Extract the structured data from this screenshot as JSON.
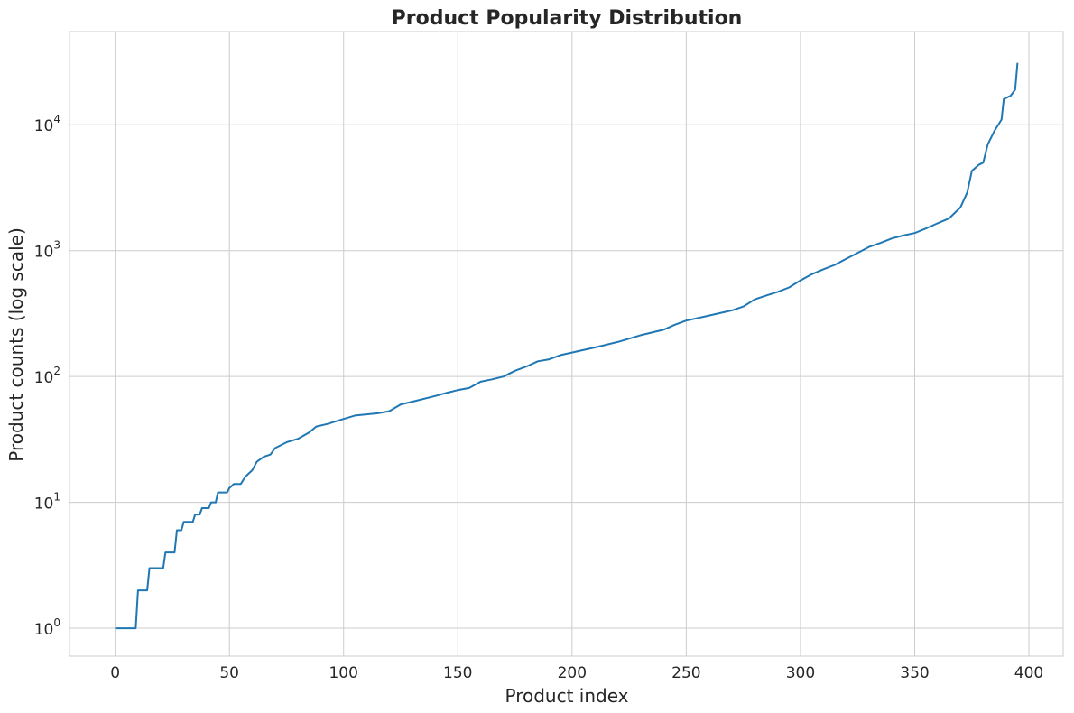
{
  "chart_data": {
    "type": "line",
    "title": "Product Popularity Distribution",
    "xlabel": "Product index",
    "ylabel": "Product counts (log scale)",
    "xlim": [
      -20,
      415
    ],
    "ylim": [
      0.6,
      55000
    ],
    "yscale": "log",
    "grid": true,
    "x_ticks": [
      0,
      50,
      100,
      150,
      200,
      250,
      300,
      350,
      400
    ],
    "x_tick_labels": [
      "0",
      "50",
      "100",
      "150",
      "200",
      "250",
      "300",
      "350",
      "400"
    ],
    "y_ticks": [
      1,
      10,
      100,
      1000,
      10000
    ],
    "y_tick_labels": [
      {
        "base": "10",
        "exp": "0"
      },
      {
        "base": "10",
        "exp": "1"
      },
      {
        "base": "10",
        "exp": "2"
      },
      {
        "base": "10",
        "exp": "3"
      },
      {
        "base": "10",
        "exp": "4"
      }
    ],
    "color": "#1f77b4",
    "series": [
      {
        "points": [
          [
            0,
            1
          ],
          [
            9,
            1
          ],
          [
            10,
            2
          ],
          [
            14,
            2
          ],
          [
            15,
            3
          ],
          [
            21,
            3
          ],
          [
            22,
            4
          ],
          [
            26,
            4
          ],
          [
            27,
            6
          ],
          [
            29,
            6
          ],
          [
            30,
            7
          ],
          [
            34,
            7
          ],
          [
            35,
            8
          ],
          [
            37,
            8
          ],
          [
            38,
            9
          ],
          [
            41,
            9
          ],
          [
            42,
            10
          ],
          [
            44,
            10
          ],
          [
            45,
            12
          ],
          [
            49,
            12
          ],
          [
            50,
            13
          ],
          [
            52,
            14
          ],
          [
            55,
            14
          ],
          [
            57,
            16
          ],
          [
            60,
            18
          ],
          [
            62,
            21
          ],
          [
            65,
            23
          ],
          [
            68,
            24
          ],
          [
            70,
            27
          ],
          [
            75,
            30
          ],
          [
            80,
            32
          ],
          [
            85,
            36
          ],
          [
            88,
            40
          ],
          [
            93,
            42
          ],
          [
            100,
            46
          ],
          [
            105,
            49
          ],
          [
            115,
            51
          ],
          [
            120,
            53
          ],
          [
            125,
            60
          ],
          [
            130,
            63
          ],
          [
            140,
            70
          ],
          [
            145,
            74
          ],
          [
            150,
            78
          ],
          [
            155,
            81
          ],
          [
            160,
            91
          ],
          [
            165,
            95
          ],
          [
            170,
            100
          ],
          [
            175,
            111
          ],
          [
            180,
            120
          ],
          [
            185,
            132
          ],
          [
            190,
            137
          ],
          [
            195,
            148
          ],
          [
            200,
            155
          ],
          [
            210,
            170
          ],
          [
            220,
            188
          ],
          [
            230,
            213
          ],
          [
            240,
            235
          ],
          [
            245,
            258
          ],
          [
            250,
            278
          ],
          [
            260,
            305
          ],
          [
            270,
            335
          ],
          [
            275,
            360
          ],
          [
            280,
            410
          ],
          [
            285,
            440
          ],
          [
            290,
            470
          ],
          [
            295,
            510
          ],
          [
            300,
            580
          ],
          [
            305,
            650
          ],
          [
            310,
            710
          ],
          [
            315,
            770
          ],
          [
            320,
            860
          ],
          [
            325,
            960
          ],
          [
            330,
            1070
          ],
          [
            335,
            1150
          ],
          [
            340,
            1250
          ],
          [
            345,
            1320
          ],
          [
            350,
            1380
          ],
          [
            355,
            1500
          ],
          [
            360,
            1650
          ],
          [
            365,
            1800
          ],
          [
            370,
            2200
          ],
          [
            373,
            2900
          ],
          [
            375,
            4300
          ],
          [
            378,
            4800
          ],
          [
            380,
            5000
          ],
          [
            382,
            7000
          ],
          [
            385,
            9000
          ],
          [
            388,
            11000
          ],
          [
            389,
            16000
          ],
          [
            392,
            17000
          ],
          [
            394,
            19000
          ],
          [
            395,
            31000
          ]
        ]
      }
    ]
  }
}
